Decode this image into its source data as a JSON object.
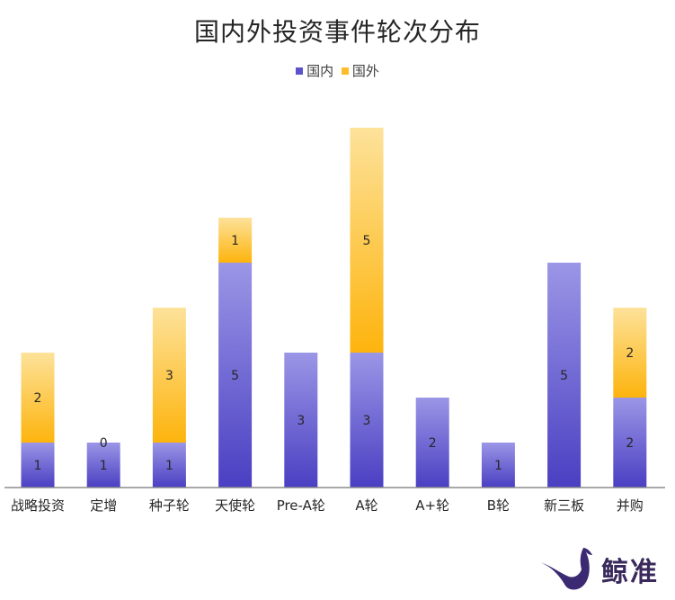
{
  "chart_data": {
    "type": "bar",
    "stacked": true,
    "title": "国内外投资事件轮次分布",
    "categories": [
      "战略投资",
      "定增",
      "种子轮",
      "天使轮",
      "Pre-A轮",
      "A轮",
      "A+轮",
      "B轮",
      "新三板",
      "并购"
    ],
    "series": [
      {
        "name": "国内",
        "values": [
          1,
          1,
          1,
          5,
          3,
          3,
          2,
          1,
          5,
          2
        ],
        "color_top": "#9b96e6",
        "color_bottom": "#4a3fc2"
      },
      {
        "name": "国外",
        "values": [
          2,
          0,
          3,
          1,
          0,
          5,
          0,
          0,
          0,
          2
        ],
        "color_top": "#fde29a",
        "color_bottom": "#fdb40d"
      }
    ],
    "data_labels": {
      "国内": [
        "1",
        "1",
        "1",
        "5",
        "3",
        "3",
        "2",
        "1",
        "5",
        "2"
      ],
      "国外": [
        "2",
        "0",
        "3",
        "1",
        "",
        "5",
        "",
        "",
        "",
        "2"
      ]
    },
    "ylim": [
      0,
      8
    ],
    "legend_position": "top",
    "grid": false
  },
  "watermark": {
    "text": "鲸准",
    "icon": "whale-logo-icon"
  }
}
